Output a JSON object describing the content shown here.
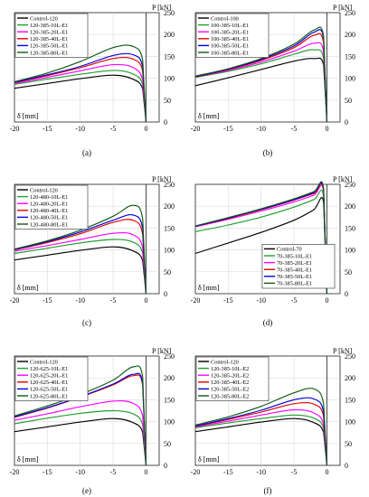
{
  "figure": {
    "colors": {
      "black": "#000000",
      "green": "#1e9e2e",
      "magenta": "#ff00ff",
      "red": "#e00000",
      "blue": "#0000dd",
      "darkgreen": "#0d5a14"
    }
  },
  "chart_data": [
    {
      "type": "line",
      "panel_label": "(a)",
      "xlabel": "δ [mm]",
      "ylabel": "P [kN]",
      "xlim": [
        -20,
        2
      ],
      "ylim": [
        0,
        250
      ],
      "xticks": [
        -20,
        -15,
        -10,
        -5,
        0
      ],
      "yticks": [
        0,
        50,
        100,
        150,
        200,
        250
      ],
      "grid": true,
      "legend_position": "top-left",
      "series": [
        {
          "name": "Control-120",
          "color": "black",
          "x": [
            -20,
            -15,
            -10,
            -5,
            -2,
            -0.5,
            0
          ],
          "y": [
            77,
            88,
            99,
            107,
            98,
            75,
            0
          ]
        },
        {
          "name": "120-385-10L-E1",
          "color": "green",
          "x": [
            -20,
            -15,
            -10,
            -5,
            -2,
            -0.5,
            0
          ],
          "y": [
            86,
            98,
            109,
            118,
            110,
            85,
            0
          ]
        },
        {
          "name": "120-385-20L-E1",
          "color": "magenta",
          "x": [
            -20,
            -15,
            -10,
            -5,
            -2,
            -0.5,
            0
          ],
          "y": [
            88,
            102,
            117,
            131,
            125,
            95,
            0
          ]
        },
        {
          "name": "120-385-40L-E1",
          "color": "red",
          "x": [
            -20,
            -15,
            -10,
            -5,
            -2,
            -0.5,
            0
          ],
          "y": [
            90,
            106,
            124,
            145,
            144,
            115,
            0
          ]
        },
        {
          "name": "120-385-50L-E1",
          "color": "blue",
          "x": [
            -20,
            -15,
            -10,
            -5,
            -2,
            -0.5,
            0
          ],
          "y": [
            91,
            108,
            127,
            152,
            154,
            125,
            0
          ]
        },
        {
          "name": "120-385-80L-E1",
          "color": "darkgreen",
          "x": [
            -20,
            -15,
            -10,
            -5,
            -2,
            -0.5,
            0
          ],
          "y": [
            92,
            112,
            138,
            170,
            173,
            140,
            0
          ]
        }
      ]
    },
    {
      "type": "line",
      "panel_label": "(b)",
      "xlabel": "δ [mm]",
      "ylabel": "P [kN]",
      "xlim": [
        -20,
        2
      ],
      "ylim": [
        0,
        250
      ],
      "xticks": [
        -20,
        -15,
        -10,
        -5,
        0
      ],
      "yticks": [
        0,
        50,
        100,
        150,
        200,
        250
      ],
      "grid": true,
      "legend_position": "top-left",
      "series": [
        {
          "name": "Control-100",
          "color": "black",
          "x": [
            -20,
            -15,
            -10,
            -5,
            -2,
            -0.5,
            0
          ],
          "y": [
            83,
            101,
            120,
            139,
            145,
            130,
            0
          ]
        },
        {
          "name": "100-385-10L-E1",
          "color": "green",
          "x": [
            -20,
            -15,
            -10,
            -5,
            -2,
            -0.5,
            0
          ],
          "y": [
            102,
            116,
            133,
            155,
            165,
            145,
            0
          ]
        },
        {
          "name": "100-385-20L-E1",
          "color": "magenta",
          "x": [
            -20,
            -15,
            -10,
            -5,
            -2,
            -0.5,
            0
          ],
          "y": [
            103,
            118,
            137,
            162,
            180,
            160,
            0
          ]
        },
        {
          "name": "100-385-40L-E1",
          "color": "red",
          "x": [
            -20,
            -15,
            -10,
            -5,
            -2,
            -0.5,
            0
          ],
          "y": [
            103,
            120,
            141,
            170,
            198,
            180,
            0
          ]
        },
        {
          "name": "100-385-50L-E1",
          "color": "blue",
          "x": [
            -20,
            -15,
            -10,
            -5,
            -2,
            -0.5,
            0
          ],
          "y": [
            104,
            121,
            143,
            174,
            205,
            190,
            0
          ]
        },
        {
          "name": "100-385-80L-E1",
          "color": "darkgreen",
          "x": [
            -20,
            -15,
            -10,
            -5,
            -2,
            -0.5,
            0
          ],
          "y": [
            105,
            122,
            145,
            178,
            210,
            195,
            0
          ]
        }
      ]
    },
    {
      "type": "line",
      "panel_label": "(c)",
      "xlabel": "δ [mm]",
      "ylabel": "P [kN]",
      "xlim": [
        -20,
        2
      ],
      "ylim": [
        0,
        250
      ],
      "xticks": [
        -20,
        -15,
        -10,
        -5,
        0
      ],
      "yticks": [
        0,
        50,
        100,
        150,
        200,
        250
      ],
      "grid": true,
      "legend_position": "top-left",
      "series": [
        {
          "name": "Control-120",
          "color": "black",
          "x": [
            -20,
            -15,
            -10,
            -5,
            -2,
            -0.5,
            0
          ],
          "y": [
            77,
            88,
            99,
            107,
            98,
            75,
            0
          ]
        },
        {
          "name": "120-480-10L-E1",
          "color": "green",
          "x": [
            -20,
            -15,
            -10,
            -5,
            -2,
            -0.5,
            0
          ],
          "y": [
            92,
            104,
            116,
            124,
            118,
            92,
            0
          ]
        },
        {
          "name": "120-480-20L-E1",
          "color": "magenta",
          "x": [
            -20,
            -15,
            -10,
            -5,
            -2,
            -0.5,
            0
          ],
          "y": [
            97,
            110,
            124,
            138,
            135,
            105,
            0
          ]
        },
        {
          "name": "120-480-40L-E1",
          "color": "red",
          "x": [
            -20,
            -15,
            -10,
            -5,
            -2,
            -0.5,
            0
          ],
          "y": [
            100,
            117,
            137,
            163,
            168,
            135,
            0
          ]
        },
        {
          "name": "120-480-50L-E1",
          "color": "blue",
          "x": [
            -20,
            -15,
            -10,
            -5,
            -2,
            -0.5,
            0
          ],
          "y": [
            101,
            119,
            141,
            168,
            180,
            148,
            0
          ]
        },
        {
          "name": "120-480-80L-E1",
          "color": "darkgreen",
          "x": [
            -20,
            -15,
            -10,
            -5,
            -2,
            -0.5,
            0
          ],
          "y": [
            102,
            121,
            145,
            177,
            202,
            170,
            0
          ]
        }
      ]
    },
    {
      "type": "line",
      "panel_label": "(d)",
      "xlabel": "δ [mm]",
      "ylabel": "P [kN]",
      "xlim": [
        -20,
        2
      ],
      "ylim": [
        0,
        250
      ],
      "xticks": [
        -20,
        -15,
        -10,
        -5,
        0
      ],
      "yticks": [
        0,
        50,
        100,
        150,
        200,
        250
      ],
      "grid": true,
      "legend_position": "bottom-right",
      "series": [
        {
          "name": "Control-70",
          "color": "black",
          "x": [
            -20,
            -15,
            -10,
            -5,
            -2,
            -0.5,
            0
          ],
          "y": [
            92,
            116,
            140,
            168,
            192,
            208,
            0
          ]
        },
        {
          "name": "70-385-10L-E1",
          "color": "green",
          "x": [
            -20,
            -15,
            -10,
            -5,
            -2,
            -0.5,
            0
          ],
          "y": [
            142,
            157,
            175,
            198,
            215,
            222,
            0
          ]
        },
        {
          "name": "70-385-20L-E1",
          "color": "magenta",
          "x": [
            -20,
            -15,
            -10,
            -5,
            -2,
            -0.5,
            0
          ],
          "y": [
            153,
            170,
            189,
            210,
            225,
            232,
            0
          ]
        },
        {
          "name": "70-385-40L-E1",
          "color": "red",
          "x": [
            -20,
            -15,
            -10,
            -5,
            -2,
            -0.5,
            0
          ],
          "y": [
            154,
            172,
            192,
            214,
            229,
            236,
            0
          ]
        },
        {
          "name": "70-385-50L-E1",
          "color": "blue",
          "x": [
            -20,
            -15,
            -10,
            -5,
            -2,
            -0.5,
            0
          ],
          "y": [
            154,
            173,
            193,
            215,
            231,
            238,
            0
          ]
        },
        {
          "name": "70-385-80L-E1",
          "color": "darkgreen",
          "x": [
            -20,
            -15,
            -10,
            -5,
            -2,
            -0.5,
            0
          ],
          "y": [
            155,
            174,
            194,
            217,
            233,
            240,
            0
          ]
        }
      ]
    },
    {
      "type": "line",
      "panel_label": "(e)",
      "xlabel": "δ [mm]",
      "ylabel": "P [kN]",
      "xlim": [
        -20,
        2
      ],
      "ylim": [
        0,
        250
      ],
      "xticks": [
        -20,
        -15,
        -10,
        -5,
        0
      ],
      "yticks": [
        0,
        50,
        100,
        150,
        200,
        250
      ],
      "grid": true,
      "legend_position": "top-left",
      "series": [
        {
          "name": "Control-120",
          "color": "black",
          "x": [
            -20,
            -15,
            -10,
            -5,
            -2,
            -0.5,
            0
          ],
          "y": [
            77,
            88,
            99,
            107,
            98,
            75,
            0
          ]
        },
        {
          "name": "120-625-10L-E1",
          "color": "green",
          "x": [
            -20,
            -15,
            -10,
            -5,
            -2,
            -0.5,
            0
          ],
          "y": [
            95,
            108,
            119,
            125,
            118,
            92,
            0
          ]
        },
        {
          "name": "120-625-20L-E1",
          "color": "magenta",
          "x": [
            -20,
            -15,
            -10,
            -5,
            -2,
            -0.5,
            0
          ],
          "y": [
            103,
            118,
            134,
            147,
            142,
            112,
            0
          ]
        },
        {
          "name": "120-625-40L-E1",
          "color": "red",
          "x": [
            -20,
            -15,
            -10,
            -5,
            -2,
            -0.5,
            0
          ],
          "y": [
            110,
            131,
            156,
            184,
            205,
            182,
            0
          ]
        },
        {
          "name": "120-625-50L-E1",
          "color": "blue",
          "x": [
            -20,
            -15,
            -10,
            -5,
            -2,
            -0.5,
            0
          ],
          "y": [
            111,
            132,
            157,
            186,
            208,
            186,
            0
          ]
        },
        {
          "name": "120-625-80L-E1",
          "color": "darkgreen",
          "x": [
            -20,
            -15,
            -10,
            -5,
            -2,
            -0.5,
            0
          ],
          "y": [
            113,
            136,
            162,
            195,
            225,
            200,
            0
          ]
        }
      ]
    },
    {
      "type": "line",
      "panel_label": "(f)",
      "xlabel": "δ [mm]",
      "ylabel": "P [kN]",
      "xlim": [
        -20,
        2
      ],
      "ylim": [
        0,
        250
      ],
      "xticks": [
        -20,
        -15,
        -10,
        -5,
        0
      ],
      "yticks": [
        0,
        50,
        100,
        150,
        200,
        250
      ],
      "grid": true,
      "legend_position": "top-left",
      "series": [
        {
          "name": "Control-120",
          "color": "black",
          "x": [
            -20,
            -15,
            -10,
            -5,
            -2,
            -0.5,
            0
          ],
          "y": [
            77,
            88,
            99,
            107,
            98,
            75,
            0
          ]
        },
        {
          "name": "120-385-10L-E2",
          "color": "green",
          "x": [
            -20,
            -15,
            -10,
            -5,
            -2,
            -0.5,
            0
          ],
          "y": [
            86,
            97,
            107,
            115,
            108,
            84,
            0
          ]
        },
        {
          "name": "120-385-20L-E2",
          "color": "magenta",
          "x": [
            -20,
            -15,
            -10,
            -5,
            -2,
            -0.5,
            0
          ],
          "y": [
            88,
            101,
            115,
            127,
            120,
            93,
            0
          ]
        },
        {
          "name": "120-385-40L-E2",
          "color": "red",
          "x": [
            -20,
            -15,
            -10,
            -5,
            -2,
            -0.5,
            0
          ],
          "y": [
            89,
            105,
            122,
            141,
            140,
            112,
            0
          ]
        },
        {
          "name": "120-385-50L-E2",
          "color": "blue",
          "x": [
            -20,
            -15,
            -10,
            -5,
            -2,
            -0.5,
            0
          ],
          "y": [
            90,
            107,
            126,
            150,
            152,
            122,
            0
          ]
        },
        {
          "name": "120-385-80L-E2",
          "color": "darkgreen",
          "x": [
            -20,
            -15,
            -10,
            -5,
            -2,
            -0.5,
            0
          ],
          "y": [
            92,
            111,
            135,
            166,
            175,
            140,
            0
          ]
        }
      ]
    }
  ]
}
